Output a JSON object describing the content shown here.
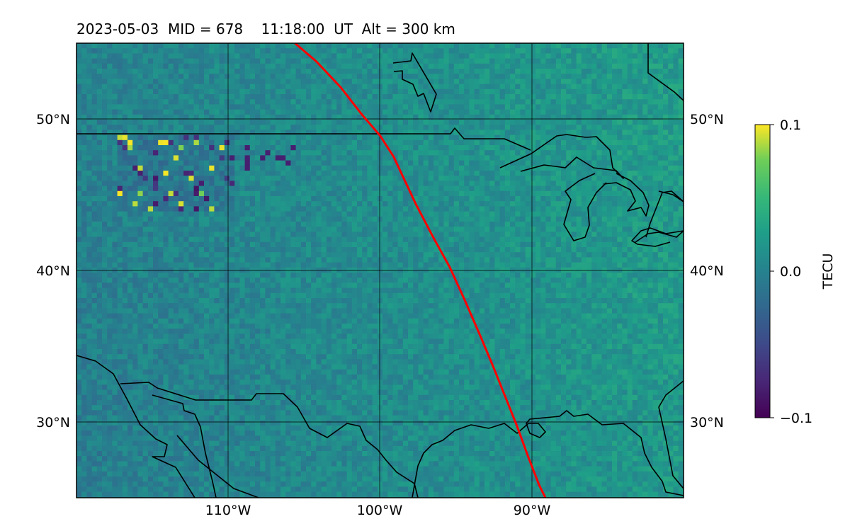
{
  "title": "2023-05-03  MID = 678    11:18:00  UT  Alt = 300 km",
  "map": {
    "lon_range": [
      -120,
      -80
    ],
    "lat_range": [
      25,
      55
    ],
    "lat_ticks": [
      {
        "value": 30,
        "label": "30°N"
      },
      {
        "value": 40,
        "label": "40°N"
      },
      {
        "value": 50,
        "label": "50°N"
      }
    ],
    "lon_ticks": [
      {
        "value": -110,
        "label": "110°W"
      },
      {
        "value": -100,
        "label": "100°W"
      },
      {
        "value": -90,
        "label": "90°W"
      }
    ],
    "colormap": "viridis",
    "background_color": "#2a8a88",
    "track_color": "#ff0000",
    "coast_color": "#000000",
    "track": [
      [
        -105.6,
        55
      ],
      [
        -104.2,
        53.8
      ],
      [
        -102.6,
        52.1
      ],
      [
        -101.2,
        50.3
      ],
      [
        -100.0,
        48.9
      ],
      [
        -99.1,
        47.5
      ],
      [
        -98.4,
        46.0
      ],
      [
        -97.6,
        44.3
      ],
      [
        -96.5,
        42.2
      ],
      [
        -95.4,
        40.2
      ],
      [
        -94.4,
        38.0
      ],
      [
        -93.4,
        35.7
      ],
      [
        -92.6,
        33.8
      ],
      [
        -91.8,
        31.8
      ],
      [
        -91.0,
        29.8
      ],
      [
        -90.2,
        27.6
      ],
      [
        -89.5,
        25.8
      ],
      [
        -89.1,
        25.0
      ]
    ]
  },
  "colorbar": {
    "label": "TECU",
    "min": -0.1,
    "max": 0.1,
    "ticks": [
      {
        "value": 0.1,
        "label": "0.1"
      },
      {
        "value": 0.0,
        "label": "0.0"
      },
      {
        "value": -0.1,
        "label": "−0.1"
      }
    ]
  }
}
